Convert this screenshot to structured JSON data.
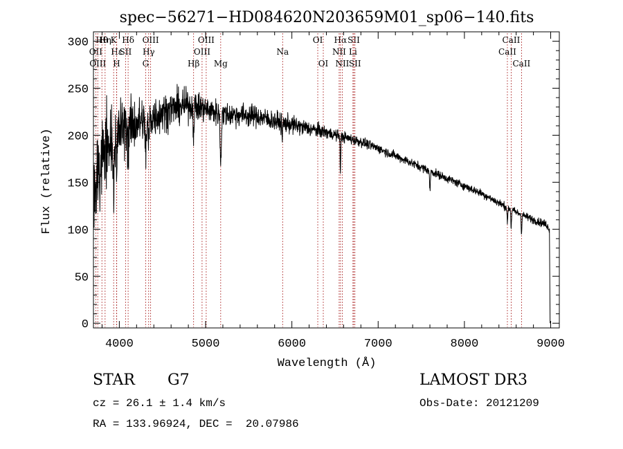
{
  "chart_data": {
    "type": "line",
    "title": "spec−56271−HD084620N203659M01_sp06−140.fits",
    "xlabel": "Wavelength (Å)",
    "ylabel": "Flux (relative)",
    "xlim": [
      3700,
      9100
    ],
    "ylim": [
      -5,
      310
    ],
    "xticks": [
      4000,
      5000,
      6000,
      7000,
      8000,
      9000
    ],
    "yticks": [
      0,
      50,
      100,
      150,
      200,
      250,
      300
    ],
    "line_color": "#000000",
    "marker_color": "#b03030",
    "continuum_knots": [
      [
        3700,
        130
      ],
      [
        3800,
        175
      ],
      [
        3900,
        195
      ],
      [
        4000,
        205
      ],
      [
        4100,
        210
      ],
      [
        4200,
        213
      ],
      [
        4400,
        220
      ],
      [
        4600,
        228
      ],
      [
        4800,
        232
      ],
      [
        5000,
        228
      ],
      [
        5200,
        222
      ],
      [
        5400,
        222
      ],
      [
        5600,
        220
      ],
      [
        5800,
        215
      ],
      [
        6000,
        211
      ],
      [
        6200,
        207
      ],
      [
        6400,
        203
      ],
      [
        6600,
        198
      ],
      [
        6800,
        193
      ],
      [
        7000,
        186
      ],
      [
        7200,
        178
      ],
      [
        7400,
        170
      ],
      [
        7600,
        162
      ],
      [
        7800,
        154
      ],
      [
        8000,
        146
      ],
      [
        8200,
        138
      ],
      [
        8400,
        128
      ],
      [
        8600,
        118
      ],
      [
        8800,
        110
      ],
      [
        8950,
        105
      ],
      [
        8985,
        100
      ]
    ],
    "absorption_features": [
      [
        3934,
        50,
        6
      ],
      [
        3969,
        45,
        6
      ],
      [
        4102,
        25,
        6
      ],
      [
        4308,
        30,
        10
      ],
      [
        4340,
        25,
        6
      ],
      [
        4861,
        30,
        5
      ],
      [
        5175,
        50,
        7
      ],
      [
        5890,
        15,
        4
      ],
      [
        6563,
        35,
        4
      ],
      [
        7600,
        20,
        5
      ],
      [
        8498,
        18,
        4
      ],
      [
        8542,
        20,
        4
      ],
      [
        8662,
        20,
        4
      ]
    ],
    "noise": [
      [
        3700,
        40
      ],
      [
        4000,
        28
      ],
      [
        4300,
        20
      ],
      [
        4600,
        16
      ],
      [
        5000,
        12
      ],
      [
        5500,
        10
      ],
      [
        6000,
        8
      ],
      [
        6500,
        5
      ],
      [
        7000,
        4
      ],
      [
        8000,
        3.5
      ],
      [
        9000,
        3.5
      ]
    ],
    "line_markers": [
      {
        "name": "Hθ",
        "wavelength": 3798,
        "row": 1
      },
      {
        "name": "OII",
        "wavelength": 3727,
        "row": 2
      },
      {
        "name": "OIII",
        "wavelength": 3750,
        "row": 3
      },
      {
        "name": "Hη",
        "wavelength": 3835,
        "row": 1
      },
      {
        "name": "K",
        "wavelength": 3934,
        "row": 1
      },
      {
        "name": "Hε",
        "wavelength": 3970,
        "row": 2
      },
      {
        "name": "H",
        "wavelength": 3969,
        "row": 3
      },
      {
        "name": "Hδ",
        "wavelength": 4102,
        "row": 1
      },
      {
        "name": "SII",
        "wavelength": 4072,
        "row": 2
      },
      {
        "name": "OIII",
        "wavelength": 4363,
        "row": 1
      },
      {
        "name": "Hγ",
        "wavelength": 4340,
        "row": 2
      },
      {
        "name": "G",
        "wavelength": 4305,
        "row": 3
      },
      {
        "name": "Hβ",
        "wavelength": 4861,
        "row": 3
      },
      {
        "name": "OIII",
        "wavelength": 5007,
        "row": 1
      },
      {
        "name": "OIII",
        "wavelength": 4959,
        "row": 2
      },
      {
        "name": "Mg",
        "wavelength": 5175,
        "row": 3
      },
      {
        "name": "Na",
        "wavelength": 5893,
        "row": 2
      },
      {
        "name": "OI",
        "wavelength": 6300,
        "row": 1
      },
      {
        "name": "OI",
        "wavelength": 6364,
        "row": 3
      },
      {
        "name": "Hα",
        "wavelength": 6563,
        "row": 1
      },
      {
        "name": "NII",
        "wavelength": 6548,
        "row": 2
      },
      {
        "name": "NII",
        "wavelength": 6584,
        "row": 3
      },
      {
        "name": "SII",
        "wavelength": 6717,
        "row": 1
      },
      {
        "name": "Li",
        "wavelength": 6708,
        "row": 2
      },
      {
        "name": "SII",
        "wavelength": 6731,
        "row": 3
      },
      {
        "name": "CaII",
        "wavelength": 8542,
        "row": 1
      },
      {
        "name": "CaII",
        "wavelength": 8498,
        "row": 2
      },
      {
        "name": "CaII",
        "wavelength": 8662,
        "row": 3
      }
    ]
  },
  "footer": {
    "class_label": "STAR",
    "subclass": "G7",
    "survey": "LAMOST DR3",
    "redshift": "cz = 26.1 ± 1.4 km/s",
    "obs_date": "Obs-Date: 20121209",
    "coords": "RA = 133.96924, DEC =  20.07986"
  }
}
